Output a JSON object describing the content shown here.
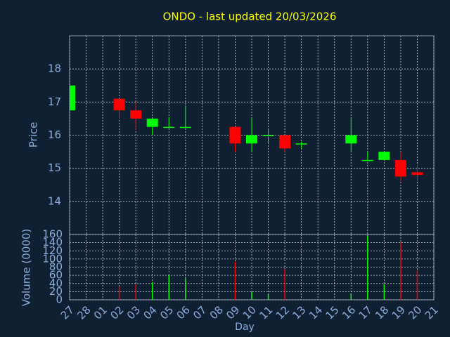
{
  "chart_data": {
    "type": "candlestick",
    "title": "ONDO - last updated 20/03/2026",
    "ylabel": "Price",
    "xlabel": "Day",
    "categories": [
      "27",
      "28",
      "01",
      "02",
      "03",
      "04",
      "05",
      "06",
      "07",
      "08",
      "09",
      "10",
      "11",
      "12",
      "13",
      "14",
      "15",
      "16",
      "17",
      "18",
      "19",
      "20",
      "21"
    ],
    "open": [
      16.75,
      null,
      null,
      17.1,
      16.75,
      16.25,
      16.23,
      16.23,
      null,
      null,
      16.25,
      15.75,
      15.98,
      16.0,
      15.73,
      null,
      null,
      15.75,
      15.23,
      15.25,
      15.25,
      14.88,
      null
    ],
    "high": [
      17.5,
      null,
      null,
      17.1,
      17.0,
      16.5,
      16.55,
      16.9,
      null,
      null,
      16.25,
      16.5,
      16.15,
      16.0,
      15.8,
      null,
      null,
      16.5,
      15.5,
      15.5,
      15.5,
      15.1,
      null
    ],
    "low": [
      16.75,
      null,
      null,
      16.5,
      16.15,
      16.0,
      16.23,
      16.23,
      null,
      null,
      15.5,
      15.5,
      15.75,
      15.5,
      15.6,
      null,
      null,
      15.5,
      15.23,
      15.25,
      14.6,
      14.6,
      null
    ],
    "close": [
      17.5,
      null,
      null,
      16.75,
      16.5,
      16.5,
      16.25,
      16.25,
      null,
      null,
      15.75,
      16.0,
      16.0,
      15.6,
      15.75,
      null,
      null,
      16.0,
      15.25,
      15.5,
      14.75,
      14.8,
      null
    ],
    "up_color": "#00ff00",
    "down_color": "#ff0000",
    "ylim": [
      13,
      19
    ],
    "yticks": [
      14,
      15,
      16,
      17,
      18
    ],
    "grid": true,
    "volume": {
      "ylabel": "Volume (0000)",
      "values": [
        null,
        null,
        null,
        33,
        38,
        43,
        60,
        53,
        null,
        null,
        93,
        19,
        14,
        76,
        null,
        null,
        null,
        16,
        157,
        38,
        141,
        72,
        null
      ],
      "ylim": [
        0,
        160
      ],
      "yticks": [
        0,
        20,
        40,
        60,
        80,
        100,
        120,
        140,
        160
      ]
    }
  }
}
